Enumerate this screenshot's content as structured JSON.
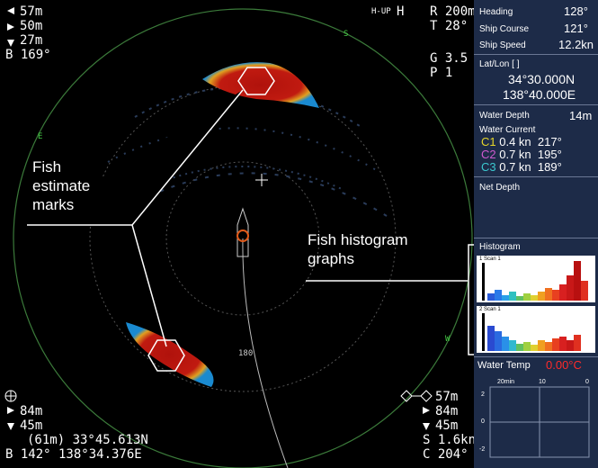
{
  "top_left": {
    "depth_1": "57m",
    "depth_2": "50m",
    "depth_3": "27m",
    "bearing": "B 169°"
  },
  "top_right": {
    "mode": "H-UP",
    "mode_letter": "H",
    "range": "R 200m",
    "tilt": "T 28°",
    "gain": "G 3.5",
    "preset": "P 1"
  },
  "sonar": {
    "south": "S",
    "east": "E",
    "west": "W",
    "bearing_180": "180"
  },
  "callouts": {
    "fish_marks": [
      "Fish",
      "estimate",
      "marks"
    ],
    "histogram": [
      "Fish histogram",
      "graphs"
    ]
  },
  "bottom_left": {
    "depth_1": "84m",
    "depth_2": "45m",
    "position": "(61m) 33°45.613N",
    "bearing_position": "B 142° 138°34.376E"
  },
  "bottom_right": {
    "depth_1": "57m",
    "depth_2": "84m",
    "depth_3": "45m",
    "speed": "S 1.6kn",
    "course": "C 204°"
  },
  "panel": {
    "heading": {
      "label": "Heading",
      "value": "128°"
    },
    "course": {
      "label": "Ship Course",
      "value": "121°"
    },
    "speed": {
      "label": "Ship Speed",
      "value": "12.2kn"
    },
    "latlon": {
      "label": "Lat/Lon [ ]",
      "lat": "34°30.000N",
      "lon": "138°40.000E"
    },
    "water_depth": {
      "label": "Water Depth",
      "value": "14m"
    },
    "water_current": {
      "label": "Water Current",
      "rows": [
        {
          "id": "C1",
          "speed": "0.4 kn",
          "direction": "217°"
        },
        {
          "id": "C2",
          "speed": "0.7 kn",
          "direction": "195°"
        },
        {
          "id": "C3",
          "speed": "0.7 kn",
          "direction": "189°"
        }
      ]
    },
    "net_depth": {
      "label": "Net Depth"
    },
    "histogram": {
      "label": "Histogram",
      "scan_1": "1 Scan 1",
      "scan_2": "2 Scan 1"
    },
    "water_temp": {
      "label": "Water Temp",
      "value": "0.00°C",
      "time_labels": [
        "20min",
        "10",
        "0"
      ],
      "value_labels": [
        "2",
        "0",
        "-2"
      ]
    }
  }
}
